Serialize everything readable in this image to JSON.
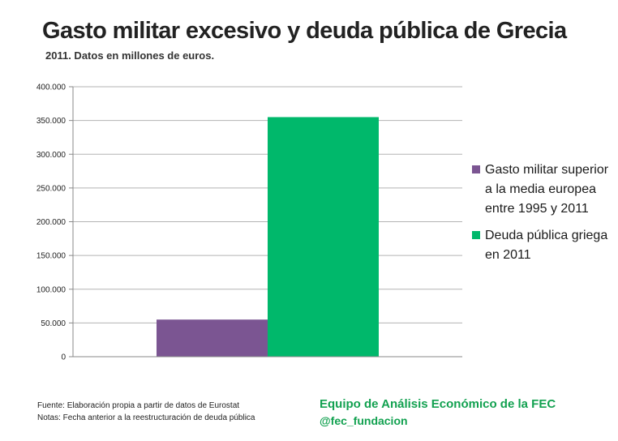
{
  "header": {
    "title": "Gasto militar excesivo y deuda pública de Grecia",
    "subtitle": "2011. Datos en millones de euros."
  },
  "chart_data": {
    "type": "bar",
    "categories": [
      ""
    ],
    "series": [
      {
        "name": "Gasto militar superior a la media europea entre 1995 y 2011",
        "values": [
          55000
        ],
        "color": "#7b5592"
      },
      {
        "name": "Deuda pública griega en 2011",
        "values": [
          355000
        ],
        "color": "#00b86b"
      }
    ],
    "ylim": [
      0,
      400000
    ],
    "yticks": [
      0,
      50000,
      100000,
      150000,
      200000,
      250000,
      300000,
      350000,
      400000
    ],
    "ytick_labels": [
      "0",
      "50.000",
      "100.000",
      "150.000",
      "200.000",
      "250.000",
      "300.000",
      "350.000",
      "400.000"
    ],
    "grid": true,
    "legend": "right"
  },
  "footer": {
    "source": "Fuente: Elaboración propia a partir de datos de Eurostat",
    "notes": "Notas: Fecha anterior a la reestructuración de deuda pública",
    "brand_name": "Equipo de Análisis Económico de la FEC",
    "brand_handle": "@fec_fundacion"
  }
}
